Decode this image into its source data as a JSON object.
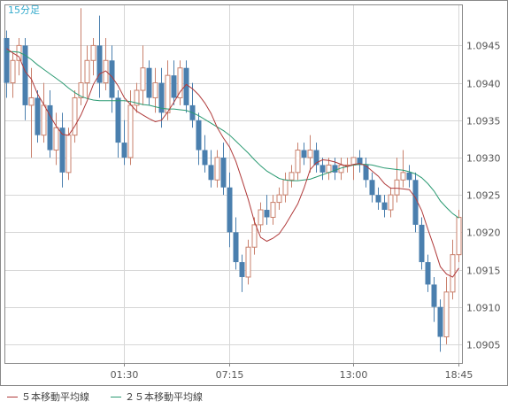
{
  "chart_data": {
    "type": "candlestick",
    "timeframe_label": "15分足",
    "x_tick_labels": [
      "01:30",
      "07:15",
      "13:00",
      "18:45"
    ],
    "y_ticks": [
      1.0905,
      1.091,
      1.0915,
      1.092,
      1.0925,
      1.093,
      1.0935,
      1.094,
      1.0945
    ],
    "y_tick_labels": [
      "1.0905",
      "1.0910",
      "1.0915",
      "1.0920",
      "1.0925",
      "1.0930",
      "1.0935",
      "1.0940",
      "1.0945"
    ],
    "ylim": [
      1.09025,
      1.09505
    ],
    "grid": true,
    "legend_position": "bottom-left",
    "colors": {
      "up": "#c9806c",
      "down": "#4a7fae",
      "ma5": "#b03a3a",
      "ma25": "#2a9a72",
      "grid": "#d6d6d6",
      "frame": "#888888",
      "label": "#555555",
      "timeframe": "#33aacc"
    },
    "candles": [
      [
        1.0946,
        1.0947,
        1.0938,
        1.094
      ],
      [
        1.094,
        1.0944,
        1.0938,
        1.0943
      ],
      [
        1.0943,
        1.0946,
        1.0941,
        1.0945
      ],
      [
        1.0945,
        1.0946,
        1.0935,
        1.0937
      ],
      [
        1.0937,
        1.0942,
        1.093,
        1.0938
      ],
      [
        1.0938,
        1.0939,
        1.0932,
        1.0933
      ],
      [
        1.0933,
        1.094,
        1.0932,
        1.0937
      ],
      [
        1.0937,
        1.0939,
        1.093,
        1.0931
      ],
      [
        1.0931,
        1.0936,
        1.0929,
        1.0934
      ],
      [
        1.0934,
        1.0936,
        1.0926,
        1.0928
      ],
      [
        1.0928,
        1.0934,
        1.0927,
        1.0933
      ],
      [
        1.0933,
        1.0939,
        1.0932,
        1.0938
      ],
      [
        1.0938,
        1.095,
        1.0937,
        1.094
      ],
      [
        1.094,
        1.0945,
        1.0938,
        1.0943
      ],
      [
        1.0943,
        1.0946,
        1.0941,
        1.0945
      ],
      [
        1.0945,
        1.0949,
        1.0938,
        1.094
      ],
      [
        1.094,
        1.0946,
        1.0939,
        1.0943
      ],
      [
        1.0943,
        1.0945,
        1.0936,
        1.0938
      ],
      [
        1.0938,
        1.0939,
        1.093,
        1.0932
      ],
      [
        1.0932,
        1.0935,
        1.0929,
        1.093
      ],
      [
        1.093,
        1.0939,
        1.0929,
        1.0937
      ],
      [
        1.0937,
        1.094,
        1.0936,
        1.0939
      ],
      [
        1.0939,
        1.0945,
        1.0937,
        1.0942
      ],
      [
        1.0942,
        1.0943,
        1.0937,
        1.0938
      ],
      [
        1.0938,
        1.0942,
        1.0936,
        1.094
      ],
      [
        1.094,
        1.0942,
        1.0934,
        1.0936
      ],
      [
        1.0936,
        1.0943,
        1.0935,
        1.0941
      ],
      [
        1.0941,
        1.0943,
        1.0937,
        1.0938
      ],
      [
        1.0938,
        1.0943,
        1.0937,
        1.0942
      ],
      [
        1.0942,
        1.0943,
        1.0936,
        1.0937
      ],
      [
        1.0937,
        1.094,
        1.0934,
        1.0935
      ],
      [
        1.0935,
        1.0936,
        1.0929,
        1.0931
      ],
      [
        1.0931,
        1.0933,
        1.0928,
        1.0929
      ],
      [
        1.0929,
        1.0931,
        1.0926,
        1.0927
      ],
      [
        1.0927,
        1.0931,
        1.0926,
        1.093
      ],
      [
        1.093,
        1.0932,
        1.0925,
        1.0926
      ],
      [
        1.0926,
        1.0928,
        1.0918,
        1.092
      ],
      [
        1.092,
        1.0922,
        1.0915,
        1.0916
      ],
      [
        1.0916,
        1.0917,
        1.0912,
        1.0914
      ],
      [
        1.0914,
        1.0919,
        1.0913,
        1.0918
      ],
      [
        1.0918,
        1.0922,
        1.0917,
        1.0921
      ],
      [
        1.0921,
        1.0924,
        1.092,
        1.0923
      ],
      [
        1.0923,
        1.0925,
        1.0921,
        1.0922
      ],
      [
        1.0922,
        1.0925,
        1.0921,
        1.0924
      ],
      [
        1.0924,
        1.0926,
        1.0923,
        1.0925
      ],
      [
        1.0925,
        1.0928,
        1.0924,
        1.0927
      ],
      [
        1.0927,
        1.0929,
        1.0926,
        1.0928
      ],
      [
        1.0928,
        1.0932,
        1.0927,
        1.0931
      ],
      [
        1.0931,
        1.0932,
        1.0929,
        1.093
      ],
      [
        1.093,
        1.0933,
        1.0928,
        1.0931
      ],
      [
        1.0931,
        1.0932,
        1.0928,
        1.0929
      ],
      [
        1.0929,
        1.093,
        1.0927,
        1.0928
      ],
      [
        1.0928,
        1.093,
        1.0927,
        1.0929
      ],
      [
        1.0929,
        1.093,
        1.0927,
        1.0928
      ],
      [
        1.0928,
        1.093,
        1.0927,
        1.0929
      ],
      [
        1.0929,
        1.093,
        1.0928,
        1.0929
      ],
      [
        1.0929,
        1.093,
        1.0927,
        1.093
      ],
      [
        1.093,
        1.0931,
        1.0928,
        1.0929
      ],
      [
        1.0929,
        1.093,
        1.0926,
        1.0927
      ],
      [
        1.0927,
        1.0928,
        1.0924,
        1.0925
      ],
      [
        1.0925,
        1.0926,
        1.0923,
        1.0924
      ],
      [
        1.0924,
        1.0925,
        1.0922,
        1.0923
      ],
      [
        1.0923,
        1.0926,
        1.0922,
        1.0925
      ],
      [
        1.0925,
        1.093,
        1.0924,
        1.0927
      ],
      [
        1.0927,
        1.0931,
        1.0926,
        1.0928
      ],
      [
        1.0928,
        1.0929,
        1.0926,
        1.0927
      ],
      [
        1.0927,
        1.0928,
        1.092,
        1.0921
      ],
      [
        1.0921,
        1.0922,
        1.0915,
        1.0916
      ],
      [
        1.0916,
        1.0917,
        1.0912,
        1.0913
      ],
      [
        1.0913,
        1.0914,
        1.0908,
        1.091
      ],
      [
        1.091,
        1.0911,
        1.0904,
        1.0906
      ],
      [
        1.0906,
        1.0914,
        1.0905,
        1.0912
      ],
      [
        1.0912,
        1.0919,
        1.0911,
        1.0917
      ],
      [
        1.0917,
        1.0923,
        1.0916,
        1.0922
      ]
    ],
    "ma5": [
      1.09446,
      1.0944,
      1.09435,
      1.09415,
      1.09405,
      1.09385,
      1.09371,
      1.09356,
      1.09342,
      1.09331,
      1.0933,
      1.09342,
      1.09357,
      1.09376,
      1.09398,
      1.09412,
      1.09416,
      1.09408,
      1.09396,
      1.0938,
      1.09371,
      1.09362,
      1.09357,
      1.09352,
      1.09348,
      1.0935,
      1.09361,
      1.09374,
      1.09388,
      1.09398,
      1.09392,
      1.09384,
      1.09373,
      1.09359,
      1.0934,
      1.09326,
      1.09314,
      1.09295,
      1.0927,
      1.09244,
      1.09214,
      1.09193,
      1.09188,
      1.09192,
      1.09198,
      1.0921,
      1.09224,
      1.09238,
      1.09259,
      1.09284,
      1.09293,
      1.09297,
      1.09296,
      1.09294,
      1.09291,
      1.09288,
      1.09291,
      1.09292,
      1.09289,
      1.09282,
      1.09275,
      1.09265,
      1.09259,
      1.09259,
      1.09258,
      1.09257,
      1.09246,
      1.09229,
      1.09204,
      1.0918,
      1.09154,
      1.09144,
      1.0914,
      1.09152
    ],
    "ma25": [
      1.09441,
      1.09442,
      1.09441,
      1.09437,
      1.09431,
      1.09424,
      1.09418,
      1.09412,
      1.09406,
      1.094,
      1.09393,
      1.09387,
      1.09382,
      1.09379,
      1.09377,
      1.09376,
      1.09376,
      1.09376,
      1.09376,
      1.09376,
      1.09375,
      1.09373,
      1.09371,
      1.0937,
      1.09368,
      1.09366,
      1.09365,
      1.09365,
      1.09364,
      1.09363,
      1.0936,
      1.09356,
      1.09351,
      1.09346,
      1.09341,
      1.09336,
      1.0933,
      1.09322,
      1.09314,
      1.09306,
      1.09297,
      1.09289,
      1.09282,
      1.09277,
      1.09272,
      1.0927,
      1.09269,
      1.09269,
      1.0927,
      1.09271,
      1.09274,
      1.09277,
      1.0928,
      1.09283,
      1.09286,
      1.09288,
      1.0929,
      1.09291,
      1.09291,
      1.0929,
      1.09288,
      1.09286,
      1.09285,
      1.09284,
      1.09283,
      1.09281,
      1.09278,
      1.09273,
      1.09265,
      1.09255,
      1.09242,
      1.09233,
      1.09225,
      1.09219
    ]
  },
  "legend": [
    {
      "label": "５本移動平均線",
      "color": "#b03a3a"
    },
    {
      "label": "２５本移動平均線",
      "color": "#2a9a72"
    }
  ]
}
